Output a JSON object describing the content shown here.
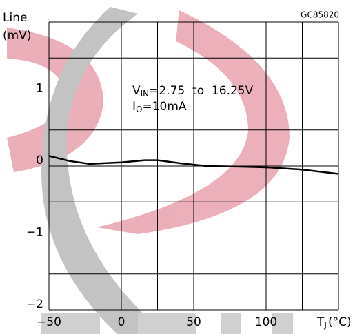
{
  "chart_data": {
    "type": "line",
    "y_label_lines": [
      "Line",
      "(mV)"
    ],
    "code": "GC85820",
    "annotations": [
      {
        "text": "V",
        "sub": "IN",
        "after": "=2.75  to  16.25V"
      },
      {
        "text": "I",
        "sub": "O",
        "after": "=10mA"
      }
    ],
    "x_label": {
      "text": "T",
      "sub": "J",
      "after": "(°C)"
    },
    "x": [
      -50,
      -36,
      -22,
      0,
      16,
      25,
      40,
      59,
      83,
      102,
      125,
      150
    ],
    "values": [
      0.14,
      0.07,
      0.03,
      0.05,
      0.08,
      0.08,
      0.04,
      0.0,
      -0.01,
      -0.02,
      -0.05,
      -0.11
    ],
    "color": "#000000",
    "xlim": [
      -50,
      150
    ],
    "xticks": [
      {
        "value": -50,
        "label": "−50"
      },
      0,
      50,
      100
    ],
    "ylim": [
      -2,
      2
    ],
    "yticks": [
      {
        "value": -2,
        "label": "−2"
      },
      {
        "value": -1,
        "label": "−1"
      },
      0,
      1
    ],
    "grid": true
  }
}
